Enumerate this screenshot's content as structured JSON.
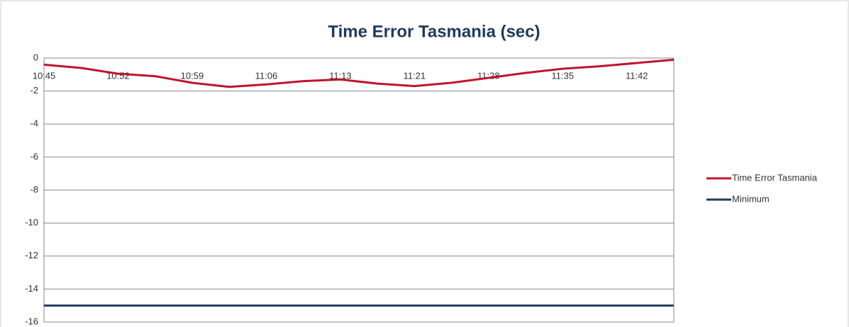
{
  "chart_data": {
    "type": "line",
    "title": "Time Error Tasmania (sec)",
    "categories": [
      "10:45",
      null,
      "10:52",
      null,
      "10:59",
      null,
      "11:06",
      null,
      "11:13",
      null,
      "11:21",
      null,
      "11:28",
      null,
      "11:35",
      null,
      "11:42",
      null
    ],
    "series": [
      {
        "name": "Time Error Tasmania",
        "color": "#c0142e",
        "values": [
          -0.4,
          -0.6,
          -0.95,
          -1.1,
          -1.5,
          -1.75,
          -1.6,
          -1.4,
          -1.3,
          -1.55,
          -1.7,
          -1.5,
          -1.2,
          -0.9,
          -0.65,
          -0.5,
          -0.3,
          -0.1
        ]
      },
      {
        "name": "Minimum",
        "color": "#1f3a5f",
        "values": [
          -15,
          -15,
          -15,
          -15,
          -15,
          -15,
          -15,
          -15,
          -15,
          -15,
          -15,
          -15,
          -15,
          -15,
          -15,
          -15,
          -15,
          -15
        ]
      }
    ],
    "ylim": [
      -16,
      0
    ],
    "yticks": [
      -16,
      -14,
      -12,
      -10,
      -8,
      -6,
      -4,
      -2,
      0
    ],
    "grid": true,
    "legend": "right"
  }
}
